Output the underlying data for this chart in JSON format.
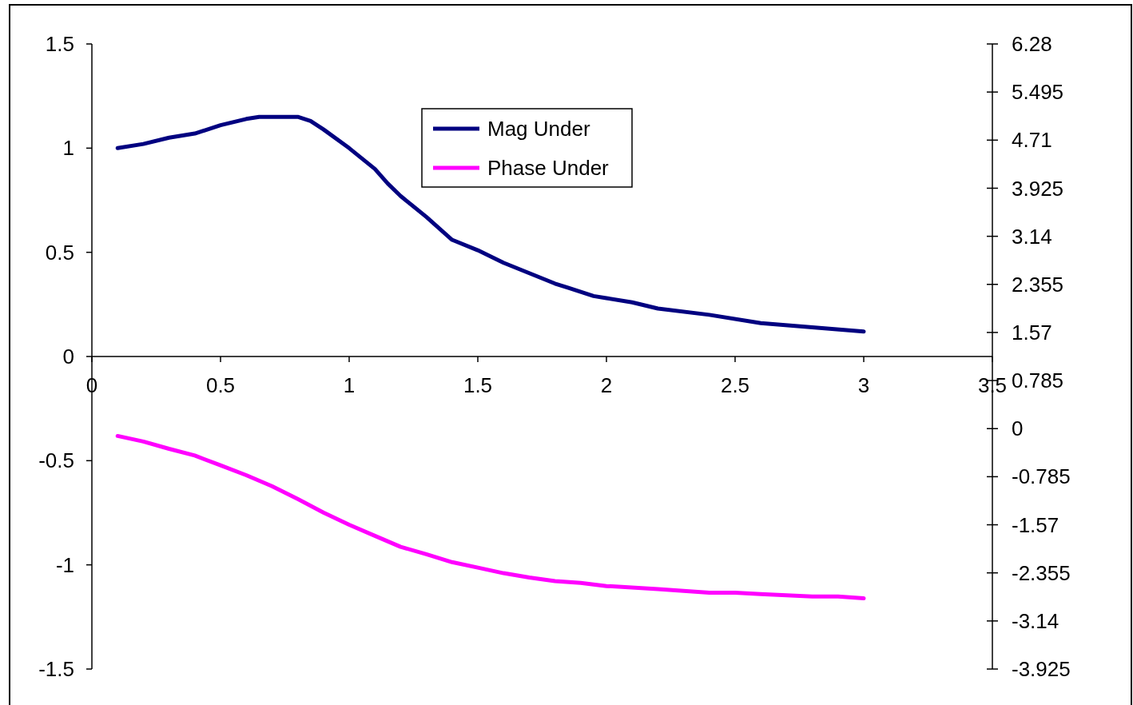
{
  "chart_data": {
    "type": "line",
    "legend": "top",
    "grid": false,
    "marker": "none",
    "line_style": "solid",
    "xlim": [
      0,
      3.5
    ],
    "xticks": [
      0,
      0.5,
      1,
      1.5,
      2,
      2.5,
      3,
      3.5
    ],
    "ylim": [
      -1.5,
      1.5
    ],
    "yticks": [
      -1.5,
      -1,
      -0.5,
      0,
      0.5,
      1,
      1.5
    ],
    "y2lim": [
      -3.925,
      6.28
    ],
    "y2ticks": [
      -3.925,
      -3.14,
      -2.355,
      -1.57,
      -0.785,
      0,
      0.785,
      1.57,
      2.355,
      3.14,
      3.925,
      4.71,
      5.495,
      6.28
    ],
    "series": [
      {
        "name": "Mag Under",
        "color": "#000080",
        "x": [
          0.1,
          0.2,
          0.3,
          0.4,
          0.5,
          0.6,
          0.65,
          0.7,
          0.75,
          0.8,
          0.85,
          0.9,
          1.0,
          1.1,
          1.15,
          1.2,
          1.3,
          1.4,
          1.5,
          1.6,
          1.7,
          1.8,
          1.85,
          1.9,
          1.95,
          2.0,
          2.1,
          2.2,
          2.4,
          2.6,
          2.8,
          3.0
        ],
        "values": [
          1.0,
          1.02,
          1.05,
          1.07,
          1.11,
          1.14,
          1.15,
          1.15,
          1.15,
          1.15,
          1.13,
          1.09,
          1.0,
          0.9,
          0.83,
          0.77,
          0.67,
          0.56,
          0.51,
          0.45,
          0.4,
          0.35,
          0.33,
          0.31,
          0.29,
          0.28,
          0.26,
          0.23,
          0.2,
          0.16,
          0.14,
          0.12
        ]
      },
      {
        "name": "Phase Under",
        "color": "#ff00ff",
        "axis": "y2",
        "x": [
          0.1,
          0.2,
          0.3,
          0.4,
          0.5,
          0.6,
          0.7,
          0.8,
          0.9,
          1.0,
          1.1,
          1.2,
          1.3,
          1.4,
          1.5,
          1.6,
          1.7,
          1.8,
          1.9,
          2.0,
          2.2,
          2.4,
          2.5,
          2.6,
          2.8,
          2.9,
          3.0
        ],
        "values": [
          -0.12,
          -0.21,
          -0.33,
          -0.44,
          -0.6,
          -0.76,
          -0.94,
          -1.15,
          -1.37,
          -1.57,
          -1.75,
          -1.93,
          -2.05,
          -2.18,
          -2.27,
          -2.36,
          -2.43,
          -2.49,
          -2.52,
          -2.57,
          -2.62,
          -2.68,
          -2.68,
          -2.7,
          -2.74,
          -2.74,
          -2.77
        ]
      }
    ]
  }
}
